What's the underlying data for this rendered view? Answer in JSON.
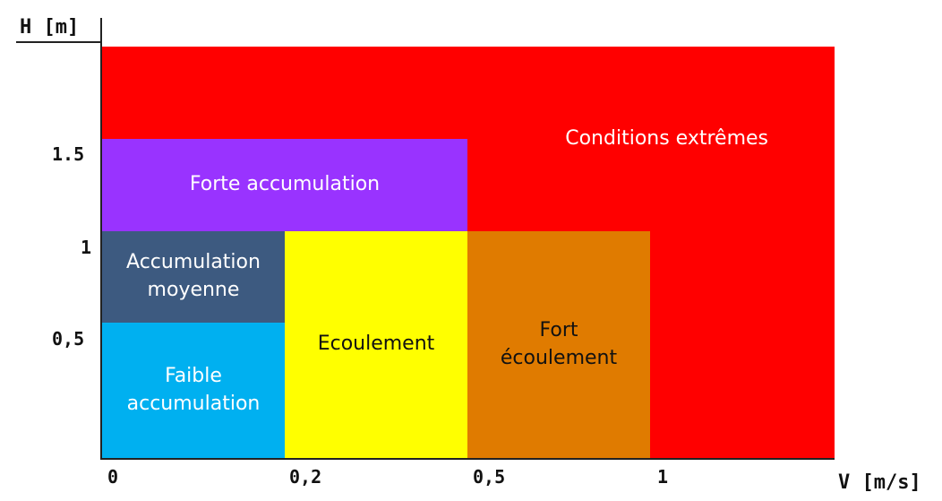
{
  "axes": {
    "y_title": "H [m]",
    "x_title": "V [m/s]",
    "y_ticks": [
      "1.5",
      "1",
      "0,5"
    ],
    "x_ticks": [
      "0",
      "0,2",
      "0,5",
      "1"
    ]
  },
  "zones": [
    {
      "key": "conditions_extremes",
      "label": "Conditions extrêmes",
      "color": "#ff0000",
      "text_color": "#ffffff"
    },
    {
      "key": "forte_accumulation",
      "label": "Forte accumulation",
      "color": "#9933ff",
      "text_color": "#ffffff"
    },
    {
      "key": "accumulation_moyenne",
      "label": "Accumulation\nmoyenne",
      "color": "#3d5a80",
      "text_color": "#ffffff"
    },
    {
      "key": "faible_accumulation",
      "label": "Faible\naccumulation",
      "color": "#00b0f0",
      "text_color": "#ffffff"
    },
    {
      "key": "ecoulement",
      "label": "Ecoulement",
      "color": "#ffff00",
      "text_color": "#111111"
    },
    {
      "key": "fort_ecoulement",
      "label": "Fort\nécoulement",
      "color": "#e07b00",
      "text_color": "#111111"
    }
  ]
}
